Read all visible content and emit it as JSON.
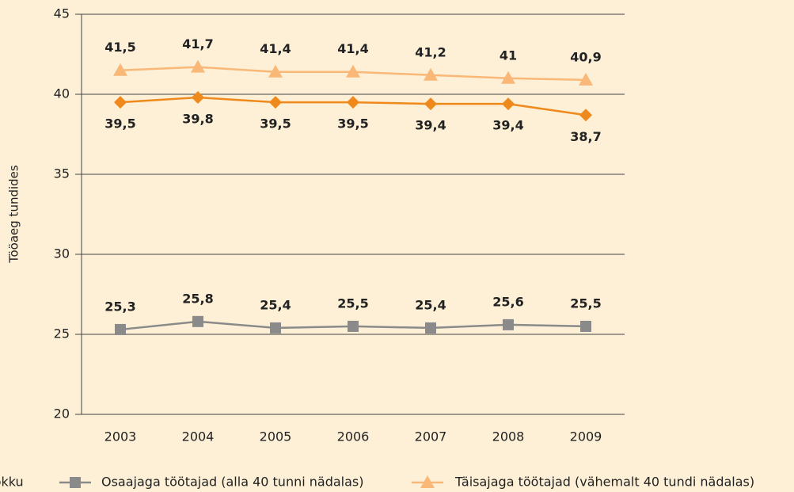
{
  "chart_data": {
    "type": "line",
    "y_label": "Tööaeg tundides",
    "categories": [
      "2003",
      "2004",
      "2005",
      "2006",
      "2007",
      "2008",
      "2009"
    ],
    "series": [
      {
        "name": "Täisajaga töötajad (vähemalt 40 tundi nädalas)",
        "color": "#f9b878",
        "marker": "triangle",
        "label_position": "above",
        "values": [
          41.5,
          41.7,
          41.4,
          41.4,
          41.2,
          41,
          40.9
        ],
        "value_labels": [
          "41,5",
          "41,7",
          "41,4",
          "41,4",
          "41,2",
          "41",
          "40,9"
        ]
      },
      {
        "name": "Kokku",
        "color": "#f0891c",
        "marker": "diamond",
        "label_position": "below",
        "values": [
          39.5,
          39.8,
          39.5,
          39.5,
          39.4,
          39.4,
          38.7
        ],
        "value_labels": [
          "39,5",
          "39,8",
          "39,5",
          "39,5",
          "39,4",
          "39,4",
          "38,7"
        ]
      },
      {
        "name": "Osaajaga töötajad (alla 40 tunni nädalas)",
        "color": "#8a8a8a",
        "marker": "square",
        "label_position": "above",
        "values": [
          25.3,
          25.8,
          25.4,
          25.5,
          25.4,
          25.6,
          25.5
        ],
        "value_labels": [
          "25,3",
          "25,8",
          "25,4",
          "25,5",
          "25,4",
          "25,6",
          "25,5"
        ]
      }
    ],
    "ylim": [
      20,
      45
    ],
    "yticks": [
      20,
      25,
      30,
      35,
      40,
      45
    ],
    "grid": true
  }
}
